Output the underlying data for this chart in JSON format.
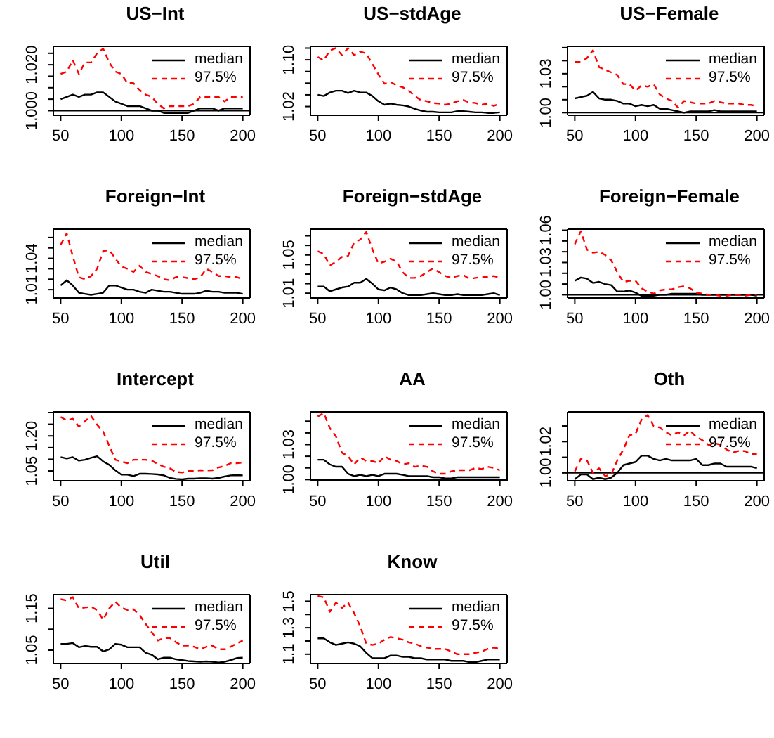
{
  "chart_data": [
    {
      "type": "line",
      "title": "US−Int",
      "x": [
        50,
        55,
        60,
        65,
        70,
        75,
        80,
        85,
        90,
        95,
        100,
        105,
        110,
        115,
        120,
        125,
        130,
        135,
        140,
        145,
        150,
        155,
        160,
        165,
        170,
        175,
        180,
        185,
        190,
        195,
        200
      ],
      "xlim": [
        44,
        206
      ],
      "xticks": [
        50,
        100,
        150,
        200
      ],
      "ylim": [
        0.998,
        1.028
      ],
      "yticks": [
        {
          "value": 1.0,
          "label": "1.000"
        },
        {
          "value": 1.005,
          "label": null
        },
        {
          "value": 1.01,
          "label": null
        },
        {
          "value": 1.015,
          "label": null
        },
        {
          "value": 1.02,
          "label": "1.020"
        },
        {
          "value": 1.025,
          "label": null
        }
      ],
      "legend": "top right",
      "ref_lines": [
        {
          "axis": "y",
          "value": 1.0,
          "color": "#000000"
        }
      ],
      "series": [
        {
          "name": "median",
          "color": "#000000",
          "line_style": "solid",
          "values": [
            1.005,
            1.006,
            1.007,
            1.006,
            1.007,
            1.007,
            1.008,
            1.008,
            1.006,
            1.004,
            1.003,
            1.002,
            1.002,
            1.002,
            1.001,
            1.0,
            1.0,
            0.999,
            0.999,
            0.999,
            0.999,
            0.999,
            1.0,
            1.001,
            1.001,
            1.001,
            1.0,
            1.001,
            1.001,
            1.001,
            1.001
          ]
        },
        {
          "name": "97.5%",
          "color": "#ff0000",
          "line_style": "dashed",
          "values": [
            1.016,
            1.017,
            1.022,
            1.016,
            1.021,
            1.021,
            1.025,
            1.027,
            1.021,
            1.017,
            1.016,
            1.012,
            1.012,
            1.009,
            1.007,
            1.006,
            1.003,
            1.001,
            1.002,
            1.002,
            1.002,
            1.002,
            1.003,
            1.006,
            1.006,
            1.006,
            1.006,
            1.004,
            1.006,
            1.006,
            1.006
          ]
        }
      ]
    },
    {
      "type": "line",
      "title": "US−stdAge",
      "x": [
        50,
        55,
        60,
        65,
        70,
        75,
        80,
        85,
        90,
        95,
        100,
        105,
        110,
        115,
        120,
        125,
        130,
        135,
        140,
        145,
        150,
        155,
        160,
        165,
        170,
        175,
        180,
        185,
        190,
        195,
        200
      ],
      "xlim": [
        44,
        206
      ],
      "xticks": [
        50,
        100,
        150,
        200
      ],
      "ylim": [
        1.005,
        1.123
      ],
      "yticks": [
        {
          "value": 1.02,
          "label": "1.02"
        },
        {
          "value": 1.04,
          "label": null
        },
        {
          "value": 1.06,
          "label": null
        },
        {
          "value": 1.08,
          "label": null
        },
        {
          "value": 1.1,
          "label": "1.10"
        },
        {
          "value": 1.12,
          "label": null
        }
      ],
      "legend": "top right",
      "series": [
        {
          "name": "median",
          "color": "#000000",
          "line_style": "solid",
          "values": [
            1.04,
            1.038,
            1.044,
            1.047,
            1.047,
            1.043,
            1.047,
            1.044,
            1.044,
            1.038,
            1.029,
            1.023,
            1.025,
            1.023,
            1.022,
            1.02,
            1.016,
            1.013,
            1.011,
            1.011,
            1.01,
            1.01,
            1.01,
            1.012,
            1.012,
            1.011,
            1.01,
            1.01,
            1.009,
            1.009,
            1.01
          ]
        },
        {
          "name": "97.5%",
          "color": "#ff0000",
          "line_style": "dashed",
          "values": [
            1.105,
            1.099,
            1.116,
            1.12,
            1.108,
            1.12,
            1.108,
            1.114,
            1.111,
            1.093,
            1.075,
            1.059,
            1.062,
            1.056,
            1.053,
            1.047,
            1.038,
            1.031,
            1.029,
            1.026,
            1.025,
            1.023,
            1.025,
            1.029,
            1.031,
            1.027,
            1.026,
            1.023,
            1.025,
            1.021,
            1.025
          ]
        }
      ]
    },
    {
      "type": "line",
      "title": "US−Female",
      "x": [
        50,
        55,
        60,
        65,
        70,
        75,
        80,
        85,
        90,
        95,
        100,
        105,
        110,
        115,
        120,
        125,
        130,
        135,
        140,
        145,
        150,
        155,
        160,
        165,
        170,
        175,
        180,
        185,
        190,
        195,
        200
      ],
      "xlim": [
        44,
        206
      ],
      "xticks": [
        50,
        100,
        150,
        200
      ],
      "ylim": [
        0.998,
        1.051
      ],
      "yticks": [
        {
          "value": 1.0,
          "label": "1.00"
        },
        {
          "value": 1.01,
          "label": null
        },
        {
          "value": 1.02,
          "label": null
        },
        {
          "value": 1.03,
          "label": "1.03"
        },
        {
          "value": 1.04,
          "label": null
        },
        {
          "value": 1.05,
          "label": null
        }
      ],
      "legend": "top right",
      "ref_lines": [
        {
          "axis": "y",
          "value": 1.0,
          "color": "#000000"
        }
      ],
      "series": [
        {
          "name": "median",
          "color": "#000000",
          "line_style": "solid",
          "values": [
            1.011,
            1.012,
            1.013,
            1.016,
            1.011,
            1.01,
            1.01,
            1.009,
            1.007,
            1.007,
            1.005,
            1.006,
            1.005,
            1.006,
            1.003,
            1.003,
            1.002,
            1.001,
            1.0,
            1.001,
            1.001,
            1.001,
            1.001,
            1.002,
            1.001,
            1.001,
            1.001,
            1.001,
            1.001,
            1.001,
            1.001
          ]
        },
        {
          "name": "97.5%",
          "color": "#ff0000",
          "line_style": "dashed",
          "values": [
            1.039,
            1.039,
            1.042,
            1.048,
            1.035,
            1.033,
            1.031,
            1.029,
            1.022,
            1.022,
            1.017,
            1.021,
            1.02,
            1.022,
            1.014,
            1.011,
            1.009,
            1.004,
            1.009,
            1.008,
            1.007,
            1.007,
            1.007,
            1.009,
            1.008,
            1.007,
            1.007,
            1.007,
            1.006,
            1.006,
            1.005
          ]
        }
      ]
    },
    {
      "type": "line",
      "title": "Foreign−Int",
      "x": [
        50,
        55,
        60,
        65,
        70,
        75,
        80,
        85,
        90,
        95,
        100,
        105,
        110,
        115,
        120,
        125,
        130,
        135,
        140,
        145,
        150,
        155,
        160,
        165,
        170,
        175,
        180,
        185,
        190,
        195,
        200
      ],
      "xlim": [
        44,
        206
      ],
      "xticks": [
        50,
        100,
        150,
        200
      ],
      "ylim": [
        1.002,
        1.068
      ],
      "yticks": [
        {
          "value": 1.01,
          "label": "1.01"
        },
        {
          "value": 1.02,
          "label": null
        },
        {
          "value": 1.03,
          "label": null
        },
        {
          "value": 1.04,
          "label": "1.04"
        },
        {
          "value": 1.05,
          "label": null
        },
        {
          "value": 1.06,
          "label": null
        }
      ],
      "legend": "top right",
      "series": [
        {
          "name": "median",
          "color": "#000000",
          "line_style": "solid",
          "values": [
            1.014,
            1.019,
            1.014,
            1.007,
            1.006,
            1.005,
            1.006,
            1.007,
            1.014,
            1.014,
            1.012,
            1.01,
            1.01,
            1.008,
            1.007,
            1.01,
            1.009,
            1.008,
            1.008,
            1.007,
            1.006,
            1.006,
            1.006,
            1.007,
            1.009,
            1.008,
            1.008,
            1.007,
            1.007,
            1.007,
            1.006
          ]
        },
        {
          "name": "97.5%",
          "color": "#ff0000",
          "line_style": "dashed",
          "values": [
            1.053,
            1.064,
            1.042,
            1.022,
            1.02,
            1.023,
            1.03,
            1.047,
            1.048,
            1.04,
            1.032,
            1.03,
            1.027,
            1.033,
            1.027,
            1.025,
            1.023,
            1.02,
            1.019,
            1.022,
            1.022,
            1.021,
            1.02,
            1.022,
            1.03,
            1.027,
            1.023,
            1.023,
            1.022,
            1.022,
            1.02
          ]
        }
      ]
    },
    {
      "type": "line",
      "title": "Foreign−stdAge",
      "x": [
        50,
        55,
        60,
        65,
        70,
        75,
        80,
        85,
        90,
        95,
        100,
        105,
        110,
        115,
        120,
        125,
        130,
        135,
        140,
        145,
        150,
        155,
        160,
        165,
        170,
        175,
        180,
        185,
        190,
        195,
        200
      ],
      "xlim": [
        44,
        206
      ],
      "xticks": [
        50,
        100,
        150,
        200
      ],
      "ylim": [
        1.005,
        1.077
      ],
      "yticks": [
        {
          "value": 1.01,
          "label": "1.01"
        },
        {
          "value": 1.02,
          "label": null
        },
        {
          "value": 1.03,
          "label": null
        },
        {
          "value": 1.04,
          "label": null
        },
        {
          "value": 1.05,
          "label": "1.05"
        },
        {
          "value": 1.06,
          "label": null
        },
        {
          "value": 1.07,
          "label": null
        }
      ],
      "legend": "top right",
      "series": [
        {
          "name": "median",
          "color": "#000000",
          "line_style": "solid",
          "values": [
            1.017,
            1.017,
            1.012,
            1.014,
            1.016,
            1.017,
            1.021,
            1.021,
            1.025,
            1.02,
            1.014,
            1.013,
            1.016,
            1.014,
            1.01,
            1.008,
            1.008,
            1.008,
            1.009,
            1.01,
            1.009,
            1.008,
            1.008,
            1.009,
            1.008,
            1.008,
            1.008,
            1.008,
            1.009,
            1.01,
            1.008
          ]
        },
        {
          "name": "97.5%",
          "color": "#ff0000",
          "line_style": "dashed",
          "values": [
            1.054,
            1.051,
            1.039,
            1.043,
            1.048,
            1.049,
            1.063,
            1.066,
            1.074,
            1.056,
            1.041,
            1.043,
            1.046,
            1.043,
            1.032,
            1.026,
            1.026,
            1.028,
            1.032,
            1.036,
            1.032,
            1.028,
            1.026,
            1.028,
            1.029,
            1.025,
            1.026,
            1.027,
            1.027,
            1.028,
            1.026
          ]
        }
      ]
    },
    {
      "type": "line",
      "title": "Foreign−Female",
      "x": [
        50,
        55,
        60,
        65,
        70,
        75,
        80,
        85,
        90,
        95,
        100,
        105,
        110,
        115,
        120,
        125,
        130,
        135,
        140,
        145,
        150,
        155,
        160,
        165,
        170,
        175,
        180,
        185,
        190,
        195,
        200
      ],
      "xlim": [
        44,
        206
      ],
      "xticks": [
        50,
        100,
        150,
        200
      ],
      "ylim": [
        0.997,
        1.061
      ],
      "yticks": [
        {
          "value": 1.0,
          "label": "1.00"
        },
        {
          "value": 1.01,
          "label": null
        },
        {
          "value": 1.02,
          "label": null
        },
        {
          "value": 1.03,
          "label": "1.03"
        },
        {
          "value": 1.04,
          "label": null
        },
        {
          "value": 1.05,
          "label": null
        },
        {
          "value": 1.06,
          "label": "1.06"
        }
      ],
      "legend": "top right",
      "ref_lines": [
        {
          "axis": "y",
          "value": 1.0,
          "color": "#000000"
        }
      ],
      "series": [
        {
          "name": "median",
          "color": "#000000",
          "line_style": "solid",
          "values": [
            1.013,
            1.016,
            1.015,
            1.011,
            1.012,
            1.01,
            1.009,
            1.003,
            1.003,
            1.004,
            1.002,
            0.999,
            0.999,
            0.999,
            1.0,
            1.0,
            1.001,
            1.001,
            1.001,
            1.001,
            1.001,
            1.0,
            1.0,
            1.0,
            1.0,
            1.0,
            1.0,
            1.0,
            1.0,
            1.0,
            0.999
          ]
        },
        {
          "name": "97.5%",
          "color": "#ff0000",
          "line_style": "dashed",
          "values": [
            1.047,
            1.059,
            1.042,
            1.039,
            1.04,
            1.037,
            1.032,
            1.021,
            1.012,
            1.013,
            1.013,
            1.006,
            1.003,
            1.001,
            1.004,
            1.005,
            1.005,
            1.007,
            1.008,
            1.006,
            1.002,
            1.001,
            1.0,
            1.0,
            0.999,
            0.999,
            1.0,
            1.0,
            0.999,
            1.0,
            1.0
          ]
        }
      ]
    },
    {
      "type": "line",
      "title": "Intercept",
      "x": [
        50,
        55,
        60,
        65,
        70,
        75,
        80,
        85,
        90,
        95,
        100,
        105,
        110,
        115,
        120,
        125,
        130,
        135,
        140,
        145,
        150,
        155,
        160,
        165,
        170,
        175,
        180,
        185,
        190,
        195,
        200
      ],
      "xlim": [
        44,
        206
      ],
      "xticks": [
        50,
        100,
        150,
        200
      ],
      "ylim": [
        1.008,
        1.303
      ],
      "yticks": [
        {
          "value": 1.05,
          "label": "1.05"
        },
        {
          "value": 1.1,
          "label": null
        },
        {
          "value": 1.15,
          "label": null
        },
        {
          "value": 1.2,
          "label": "1.20"
        },
        {
          "value": 1.25,
          "label": null
        },
        {
          "value": 1.3,
          "label": null
        }
      ],
      "legend": "top right",
      "series": [
        {
          "name": "median",
          "color": "#000000",
          "line_style": "solid",
          "values": [
            1.109,
            1.103,
            1.109,
            1.094,
            1.098,
            1.106,
            1.113,
            1.091,
            1.076,
            1.053,
            1.034,
            1.034,
            1.028,
            1.038,
            1.038,
            1.037,
            1.035,
            1.031,
            1.02,
            1.016,
            1.014,
            1.017,
            1.017,
            1.019,
            1.019,
            1.017,
            1.02,
            1.026,
            1.031,
            1.032,
            1.031
          ]
        },
        {
          "name": "97.5%",
          "color": "#ff0000",
          "line_style": "dashed",
          "values": [
            1.281,
            1.266,
            1.274,
            1.24,
            1.263,
            1.286,
            1.248,
            1.218,
            1.158,
            1.098,
            1.091,
            1.083,
            1.098,
            1.098,
            1.098,
            1.094,
            1.08,
            1.068,
            1.061,
            1.046,
            1.043,
            1.05,
            1.05,
            1.053,
            1.052,
            1.053,
            1.065,
            1.071,
            1.083,
            1.083,
            1.086
          ]
        }
      ]
    },
    {
      "type": "line",
      "title": "AA",
      "x": [
        50,
        55,
        60,
        65,
        70,
        75,
        80,
        85,
        90,
        95,
        100,
        105,
        110,
        115,
        120,
        125,
        130,
        135,
        140,
        145,
        150,
        155,
        160,
        165,
        170,
        175,
        180,
        185,
        190,
        195,
        200
      ],
      "xlim": [
        44,
        206
      ],
      "xticks": [
        50,
        100,
        150,
        200
      ],
      "ylim": [
        0.999,
        1.058
      ],
      "yticks": [
        {
          "value": 1.0,
          "label": "1.00"
        },
        {
          "value": 1.01,
          "label": null
        },
        {
          "value": 1.02,
          "label": null
        },
        {
          "value": 1.03,
          "label": "1.03"
        },
        {
          "value": 1.04,
          "label": null
        },
        {
          "value": 1.05,
          "label": null
        }
      ],
      "legend": "top right",
      "ref_lines": [
        {
          "axis": "y",
          "value": 1.0,
          "color": "#000000"
        }
      ],
      "series": [
        {
          "name": "median",
          "color": "#000000",
          "line_style": "solid",
          "values": [
            1.017,
            1.017,
            1.013,
            1.011,
            1.011,
            1.005,
            1.003,
            1.004,
            1.003,
            1.004,
            1.003,
            1.005,
            1.005,
            1.005,
            1.004,
            1.003,
            1.003,
            1.003,
            1.003,
            1.002,
            1.002,
            1.001,
            1.001,
            1.002,
            1.002,
            1.002,
            1.002,
            1.002,
            1.002,
            1.002,
            1.002
          ]
        },
        {
          "name": "97.5%",
          "color": "#ff0000",
          "line_style": "dashed",
          "values": [
            1.054,
            1.057,
            1.044,
            1.037,
            1.023,
            1.02,
            1.013,
            1.019,
            1.016,
            1.016,
            1.014,
            1.02,
            1.017,
            1.016,
            1.013,
            1.014,
            1.011,
            1.012,
            1.011,
            1.007,
            1.005,
            1.005,
            1.007,
            1.008,
            1.008,
            1.008,
            1.01,
            1.009,
            1.011,
            1.01,
            1.008
          ]
        }
      ]
    },
    {
      "type": "line",
      "title": "Oth",
      "x": [
        50,
        55,
        60,
        65,
        70,
        75,
        80,
        85,
        90,
        95,
        100,
        105,
        110,
        115,
        120,
        125,
        130,
        135,
        140,
        145,
        150,
        155,
        160,
        165,
        170,
        175,
        180,
        185,
        190,
        195,
        200
      ],
      "xlim": [
        44,
        206
      ],
      "xticks": [
        50,
        100,
        150,
        200
      ],
      "ylim": [
        0.995,
        1.039
      ],
      "yticks": [
        {
          "value": 1.0,
          "label": "1.00"
        },
        {
          "value": 1.01,
          "label": null
        },
        {
          "value": 1.02,
          "label": "1.02"
        },
        {
          "value": 1.03,
          "label": null
        }
      ],
      "legend": "top right",
      "ref_lines": [
        {
          "axis": "y",
          "value": 1.0,
          "color": "#000000"
        }
      ],
      "series": [
        {
          "name": "median",
          "color": "#000000",
          "line_style": "solid",
          "values": [
            0.996,
            0.999,
            0.999,
            0.996,
            0.997,
            0.996,
            0.997,
            1.0,
            1.005,
            1.006,
            1.007,
            1.011,
            1.011,
            1.009,
            1.008,
            1.009,
            1.008,
            1.008,
            1.008,
            1.008,
            1.009,
            1.005,
            1.005,
            1.006,
            1.006,
            1.004,
            1.004,
            1.004,
            1.004,
            1.004,
            1.003
          ]
        },
        {
          "name": "97.5%",
          "color": "#ff0000",
          "line_style": "dashed",
          "values": [
            1.001,
            1.009,
            1.008,
            1.0,
            1.003,
            0.998,
            0.999,
            1.008,
            1.015,
            1.024,
            1.025,
            1.034,
            1.037,
            1.03,
            1.029,
            1.026,
            1.024,
            1.026,
            1.024,
            1.027,
            1.023,
            1.021,
            1.018,
            1.019,
            1.018,
            1.015,
            1.013,
            1.014,
            1.014,
            1.012,
            1.012
          ]
        }
      ]
    },
    {
      "type": "line",
      "title": "Util",
      "x": [
        50,
        55,
        60,
        65,
        70,
        75,
        80,
        85,
        90,
        95,
        100,
        105,
        110,
        115,
        120,
        125,
        130,
        135,
        140,
        145,
        150,
        155,
        160,
        165,
        170,
        175,
        180,
        185,
        190,
        195,
        200
      ],
      "xlim": [
        44,
        206
      ],
      "xticks": [
        50,
        100,
        150,
        200
      ],
      "ylim": [
        1.018,
        1.183
      ],
      "yticks": [
        {
          "value": 1.05,
          "label": "1.05"
        },
        {
          "value": 1.1,
          "label": null
        },
        {
          "value": 1.15,
          "label": "1.15"
        }
      ],
      "legend": "top right",
      "series": [
        {
          "name": "median",
          "color": "#000000",
          "line_style": "solid",
          "values": [
            1.065,
            1.065,
            1.067,
            1.057,
            1.06,
            1.058,
            1.058,
            1.047,
            1.052,
            1.065,
            1.063,
            1.057,
            1.057,
            1.057,
            1.044,
            1.039,
            1.028,
            1.032,
            1.032,
            1.028,
            1.026,
            1.024,
            1.023,
            1.022,
            1.023,
            1.022,
            1.02,
            1.022,
            1.026,
            1.031,
            1.032
          ]
        },
        {
          "name": "97.5%",
          "color": "#ff0000",
          "line_style": "dashed",
          "values": [
            1.172,
            1.169,
            1.177,
            1.15,
            1.152,
            1.154,
            1.146,
            1.123,
            1.15,
            1.166,
            1.152,
            1.146,
            1.148,
            1.134,
            1.113,
            1.093,
            1.073,
            1.079,
            1.079,
            1.069,
            1.061,
            1.061,
            1.058,
            1.052,
            1.058,
            1.061,
            1.052,
            1.052,
            1.058,
            1.066,
            1.073
          ]
        }
      ]
    },
    {
      "type": "line",
      "title": "Know",
      "x": [
        50,
        55,
        60,
        65,
        70,
        75,
        80,
        85,
        90,
        95,
        100,
        105,
        110,
        115,
        120,
        125,
        130,
        135,
        140,
        145,
        150,
        155,
        160,
        165,
        170,
        175,
        180,
        185,
        190,
        195,
        200
      ],
      "xlim": [
        44,
        206
      ],
      "xticks": [
        50,
        100,
        150,
        200
      ],
      "ylim": [
        1.03,
        1.55
      ],
      "yticks": [
        {
          "value": 1.1,
          "label": "1.1"
        },
        {
          "value": 1.2,
          "label": null
        },
        {
          "value": 1.3,
          "label": "1.3"
        },
        {
          "value": 1.4,
          "label": null
        },
        {
          "value": 1.5,
          "label": "1.5"
        }
      ],
      "legend": "top right",
      "series": [
        {
          "name": "median",
          "color": "#000000",
          "line_style": "solid",
          "values": [
            1.22,
            1.22,
            1.19,
            1.17,
            1.18,
            1.19,
            1.18,
            1.16,
            1.11,
            1.07,
            1.07,
            1.07,
            1.09,
            1.09,
            1.08,
            1.08,
            1.07,
            1.07,
            1.06,
            1.06,
            1.06,
            1.06,
            1.05,
            1.05,
            1.05,
            1.04,
            1.04,
            1.05,
            1.06,
            1.06,
            1.06
          ]
        },
        {
          "name": "97.5%",
          "color": "#ff0000",
          "line_style": "dashed",
          "values": [
            1.54,
            1.53,
            1.42,
            1.49,
            1.45,
            1.49,
            1.41,
            1.31,
            1.18,
            1.17,
            1.18,
            1.21,
            1.23,
            1.22,
            1.21,
            1.19,
            1.18,
            1.16,
            1.15,
            1.14,
            1.14,
            1.14,
            1.12,
            1.1,
            1.1,
            1.1,
            1.11,
            1.12,
            1.14,
            1.15,
            1.14
          ]
        }
      ]
    }
  ]
}
